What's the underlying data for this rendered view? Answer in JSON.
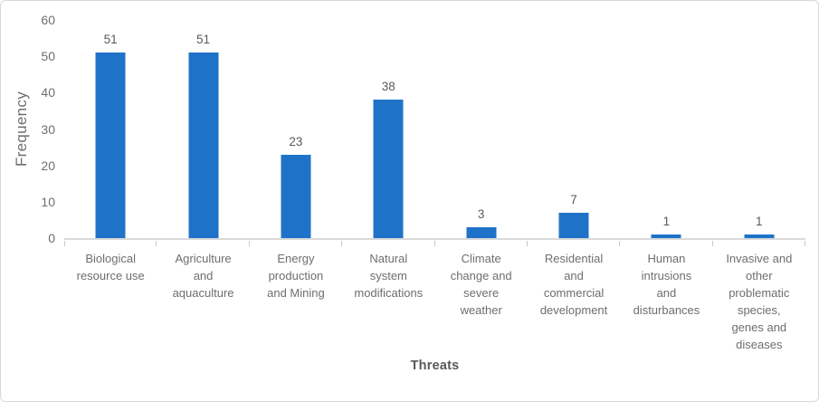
{
  "chart_data": {
    "type": "bar",
    "title": "",
    "xlabel": "Threats",
    "ylabel": "Frequency",
    "ylim": [
      0,
      60
    ],
    "yticks": [
      0,
      10,
      20,
      30,
      40,
      50,
      60
    ],
    "grid": false,
    "legend": "none",
    "bar_color": "#1E73C8",
    "axis_line_color": "#D9D9D9",
    "text_color": "#6e6e6e",
    "data_labels": true,
    "categories": [
      "Biological resource use",
      "Agriculture and aquaculture",
      "Energy production and Mining",
      "Natural system modifications",
      "Climate change and severe weather",
      "Residential and commercial development",
      "Human intrusions and disturbances",
      "Invasive and other problematic species, genes and diseases"
    ],
    "category_lines": [
      [
        "Biological",
        "resource use"
      ],
      [
        "Agriculture",
        "and",
        "aquaculture"
      ],
      [
        "Energy",
        "production",
        "and Mining"
      ],
      [
        "Natural",
        "system",
        "modifications"
      ],
      [
        "Climate",
        "change and",
        "severe",
        "weather"
      ],
      [
        "Residential",
        "and",
        "commercial",
        "development"
      ],
      [
        "Human",
        "intrusions",
        "and",
        "disturbances"
      ],
      [
        "Invasive and",
        "other",
        "problematic",
        "species,",
        "genes and",
        "diseases"
      ]
    ],
    "values": [
      51,
      51,
      23,
      38,
      3,
      7,
      1,
      1
    ]
  }
}
